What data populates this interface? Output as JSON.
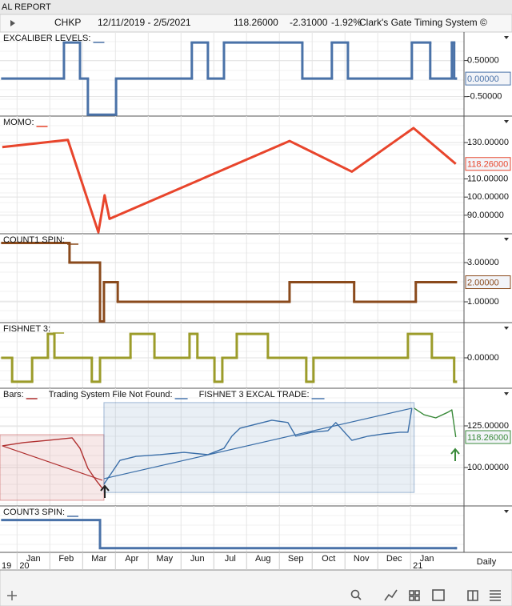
{
  "header": {
    "title": "AL REPORT",
    "symbol": "CHKP",
    "range": "12/11/2019 - 2/5/2021",
    "last": "118.26000",
    "change": "-2.31000",
    "change_pct": "-1.92%",
    "system": "Clark's Gate Timing System ©"
  },
  "x_axis": {
    "xlim": [
      -1.02,
      13.13
    ],
    "xticks": [
      {
        "value": 0,
        "label": "Jan"
      },
      {
        "value": 1,
        "label": "Feb"
      },
      {
        "value": 2,
        "label": "Mar"
      },
      {
        "value": 3,
        "label": "Apr"
      },
      {
        "value": 4,
        "label": "May"
      },
      {
        "value": 5,
        "label": "Jun"
      },
      {
        "value": 6,
        "label": "Jul"
      },
      {
        "value": 7,
        "label": "Aug"
      },
      {
        "value": 8,
        "label": "Sep"
      },
      {
        "value": 9,
        "label": "Oct"
      },
      {
        "value": 10,
        "label": "Nov"
      },
      {
        "value": 11,
        "label": "Dec"
      },
      {
        "value": 12,
        "label": "Jan"
      }
    ],
    "years": [
      {
        "value": -1,
        "label": "19"
      },
      {
        "value": 0,
        "label": "20"
      },
      {
        "value": 12,
        "label": "21"
      }
    ],
    "period": "Daily"
  },
  "chart_data": [
    {
      "type": "step",
      "title": "EXCALIBER LEVELS:",
      "ylim": [
        -1.04,
        1.29
      ],
      "yticks": [
        {
          "value": 0.5,
          "label": "0.50000"
        },
        {
          "value": -0.5,
          "label": "-0.50000"
        }
      ],
      "current": {
        "value": 0,
        "label": "0.00000"
      },
      "series": [
        {
          "color": "#4a72a8",
          "x": [
            -0.95,
            0.93,
            1.42,
            1.66,
            2.52,
            4.83,
            5.32,
            5.81,
            8.2,
            9.1,
            9.59,
            11.54,
            12.1,
            12.76,
            12.83,
            12.88
          ],
          "values": [
            0,
            1,
            0,
            -1,
            0,
            1,
            0,
            1,
            0,
            1,
            0,
            1,
            0,
            1,
            0,
            0
          ]
        }
      ]
    },
    {
      "type": "line",
      "title": "MOMO:",
      "ylim": [
        79.8,
        144.6
      ],
      "yticks": [
        {
          "value": 130,
          "label": "130.00000"
        },
        {
          "value": 110,
          "label": "110.00000"
        },
        {
          "value": 100,
          "label": "100.00000"
        },
        {
          "value": 90,
          "label": "90.00000"
        }
      ],
      "current": {
        "value": 118.26,
        "label": "118.26000"
      },
      "series": [
        {
          "color": "#e8452c",
          "x": [
            -0.95,
            1.05,
            1.98,
            2.17,
            2.32,
            7.81,
            9.71,
            11.59,
            12.88
          ],
          "values": [
            127.5,
            131.5,
            80.6,
            101,
            88,
            130.9,
            114,
            138,
            118.26
          ]
        }
      ]
    },
    {
      "type": "step",
      "title": "COUNT1 SPIN:",
      "ylim": [
        -0.06,
        4.47
      ],
      "yticks": [
        {
          "value": 3,
          "label": "3.00000"
        },
        {
          "value": 1,
          "label": "1.00000"
        }
      ],
      "current": {
        "value": 2,
        "label": "2.00000"
      },
      "series": [
        {
          "color": "#8a4a1c",
          "x": [
            -0.95,
            1.1,
            2.03,
            2.15,
            2.57,
            7.81,
            9.78,
            11.66,
            12.88
          ],
          "values": [
            4,
            3,
            0,
            2,
            1,
            2,
            1,
            2,
            2
          ]
        }
      ]
    },
    {
      "type": "step",
      "title": "FISHNET 3:",
      "ylim": [
        -1.27,
        1.47
      ],
      "yticks": [
        {
          "value": 0,
          "label": "0.00000"
        }
      ],
      "series": [
        {
          "color": "#9c9c2a",
          "x": [
            -0.95,
            -0.65,
            -0.04,
            0.44,
            0.64,
            1.78,
            2.03,
            2.96,
            3.69,
            4.76,
            5.0,
            5.52,
            5.76,
            6.2,
            7.15,
            8.32,
            8.54,
            11.42,
            12.15,
            12.83,
            12.88
          ],
          "values": [
            0,
            -1,
            0,
            1,
            0,
            -1,
            0,
            1,
            0,
            1,
            0,
            -1,
            0,
            1,
            0,
            -1,
            0,
            1,
            0,
            -1,
            -1
          ]
        }
      ]
    },
    {
      "type": "bars",
      "title": "Bars:",
      "legend": [
        "Trading System File Not Found:",
        "FISHNET 3 EXCAL TRADE:"
      ],
      "ylim": [
        76.9,
        147.6
      ],
      "yticks": [
        {
          "value": 125,
          "label": "125.00000"
        },
        {
          "value": 100,
          "label": "100.00000"
        }
      ],
      "current": {
        "value": 118.26,
        "label": "118.26000"
      },
      "zones": [
        {
          "color": "#c04040",
          "x": [
            -1.02,
            2.15
          ],
          "y": [
            80.3,
            119.7
          ]
        },
        {
          "color": "#4a78b0",
          "x": [
            2.15,
            11.61
          ],
          "y": [
            85,
            139
          ]
        }
      ],
      "trendlines": [
        {
          "color": "#b03030",
          "x": [
            -0.95,
            2.1
          ],
          "values": [
            113,
            92.3
          ]
        },
        {
          "color": "#3a6ea8",
          "x": [
            2.15,
            11.54
          ],
          "values": [
            93.3,
            135.6
          ]
        }
      ],
      "series": [
        {
          "color": "#b03030",
          "x": [
            -0.95,
            -0.29,
            0.44,
            1.18,
            1.42,
            1.66,
            1.91,
            2.1
          ],
          "values": [
            113,
            115,
            116.3,
            117.8,
            111.5,
            99.5,
            92.3,
            87.5
          ]
        },
        {
          "color": "#3a6ea8",
          "x": [
            2.15,
            2.39,
            2.64,
            3.13,
            3.86,
            4.59,
            5.32,
            5.81,
            6.05,
            6.3,
            6.78,
            7.27,
            7.76,
            8.0,
            8.49,
            8.98,
            9.22,
            9.71,
            10.2,
            10.69,
            11.18,
            11.42,
            11.54
          ],
          "values": [
            90,
            97,
            104.3,
            106.7,
            107.7,
            109.1,
            107.7,
            111.5,
            118.8,
            123.6,
            126,
            128.4,
            127,
            118.8,
            121.2,
            122.1,
            127,
            116.3,
            118.8,
            120.2,
            121.2,
            121.2,
            135.6
          ]
        },
        {
          "color": "#3a8a3a",
          "x": [
            11.61,
            11.91,
            12.27,
            12.64,
            12.76,
            12.88
          ],
          "values": [
            135.6,
            131.7,
            129.8,
            133.2,
            134.6,
            118.26
          ]
        }
      ]
    },
    {
      "type": "step",
      "title": "COUNT3 SPIN:",
      "ylim": [
        -0.15,
        1.5
      ],
      "yticks": [],
      "series": [
        {
          "color": "#4a72a8",
          "x": [
            -0.95,
            2.03,
            12.88
          ],
          "values": [
            1,
            0,
            0
          ]
        }
      ]
    }
  ]
}
